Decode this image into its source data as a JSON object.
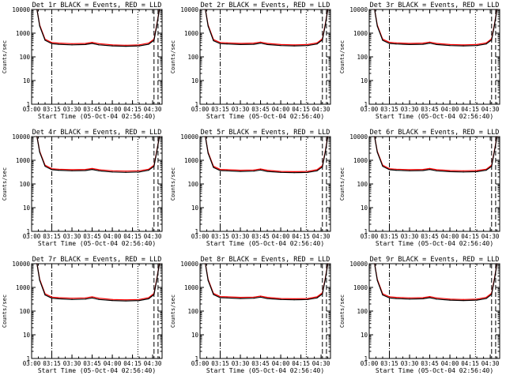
{
  "figure": {
    "start_time_label": "Start Time (05-Oct-04 02:56:40)",
    "ylabel": "Counts/sec",
    "colors": {
      "events": "#000000",
      "lld": "#ff0000",
      "background": "#ffffff"
    }
  },
  "chart_data": [
    {
      "type": "line",
      "title": "Det 1r BLACK = Events, RED = LLD",
      "xlabel": "Start Time (05-Oct-04 02:56:40)",
      "ylabel": "Counts/sec",
      "yscale": "log",
      "xlim": [
        "03:00",
        "04:37"
      ],
      "ylim": [
        1,
        10000
      ],
      "x_tick_labels": [
        "03:00",
        "03:15",
        "03:30",
        "03:45",
        "04:00",
        "04:15",
        "04:30"
      ],
      "y_tick_labels": [
        "1",
        "10",
        "100",
        "1000",
        "10000"
      ],
      "x": [
        "03:04",
        "03:06",
        "03:10",
        "03:15",
        "03:20",
        "03:30",
        "03:40",
        "03:45",
        "03:50",
        "04:00",
        "04:10",
        "04:20",
        "04:27",
        "04:31",
        "04:33",
        "04:35"
      ],
      "series": [
        {
          "name": "Events",
          "color": "#000000",
          "values": [
            10000,
            2000,
            500,
            360,
            340,
            320,
            330,
            370,
            320,
            290,
            280,
            290,
            340,
            500,
            2000,
            10000
          ]
        },
        {
          "name": "LLD",
          "color": "#ff0000",
          "values": [
            10000,
            2200,
            560,
            400,
            380,
            360,
            370,
            410,
            360,
            320,
            310,
            320,
            380,
            560,
            2200,
            10000
          ]
        }
      ],
      "markers": [
        {
          "time": "03:15",
          "style": "dash-dot"
        },
        {
          "time": "04:19",
          "style": "dotted"
        },
        {
          "time": "04:31",
          "style": "dashed"
        },
        {
          "time": "04:34",
          "style": "dashed"
        }
      ]
    },
    {
      "type": "line",
      "title": "Det 2r BLACK = Events, RED = LLD",
      "xlabel": "Start Time (05-Oct-04 02:56:40)",
      "ylabel": "Counts/sec",
      "yscale": "log",
      "xlim": [
        "03:00",
        "04:37"
      ],
      "ylim": [
        1,
        10000
      ],
      "x_tick_labels": [
        "03:00",
        "03:15",
        "03:30",
        "03:45",
        "04:00",
        "04:15",
        "04:30"
      ],
      "y_tick_labels": [
        "1",
        "10",
        "100",
        "1000",
        "10000"
      ],
      "x": [
        "03:04",
        "03:06",
        "03:10",
        "03:15",
        "03:20",
        "03:30",
        "03:40",
        "03:45",
        "03:50",
        "04:00",
        "04:10",
        "04:20",
        "04:27",
        "04:31",
        "04:33",
        "04:35"
      ],
      "series": [
        {
          "name": "Events",
          "color": "#000000",
          "values": [
            10000,
            2000,
            480,
            360,
            350,
            330,
            340,
            380,
            330,
            300,
            290,
            300,
            350,
            520,
            2000,
            10000
          ]
        },
        {
          "name": "LLD",
          "color": "#ff0000",
          "values": [
            10000,
            2200,
            540,
            400,
            390,
            370,
            380,
            420,
            370,
            330,
            320,
            330,
            390,
            580,
            2200,
            10000
          ]
        }
      ],
      "markers": [
        {
          "time": "03:15",
          "style": "dash-dot"
        },
        {
          "time": "04:19",
          "style": "dotted"
        },
        {
          "time": "04:31",
          "style": "dashed"
        },
        {
          "time": "04:34",
          "style": "dashed"
        }
      ]
    },
    {
      "type": "line",
      "title": "Det 3r BLACK = Events, RED = LLD",
      "xlabel": "Start Time (05-Oct-04 02:56:40)",
      "ylabel": "Counts/sec",
      "yscale": "log",
      "xlim": [
        "03:00",
        "04:37"
      ],
      "ylim": [
        1,
        10000
      ],
      "x_tick_labels": [
        "03:00",
        "03:15",
        "03:30",
        "03:45",
        "04:00",
        "04:15",
        "04:30"
      ],
      "y_tick_labels": [
        "1",
        "10",
        "100",
        "1000",
        "10000"
      ],
      "x": [
        "03:04",
        "03:06",
        "03:10",
        "03:15",
        "03:20",
        "03:30",
        "03:40",
        "03:45",
        "03:50",
        "04:00",
        "04:10",
        "04:20",
        "04:27",
        "04:31",
        "04:33",
        "04:35"
      ],
      "series": [
        {
          "name": "Events",
          "color": "#000000",
          "values": [
            10000,
            2000,
            500,
            370,
            350,
            330,
            340,
            380,
            330,
            300,
            290,
            300,
            350,
            520,
            2000,
            10000
          ]
        },
        {
          "name": "LLD",
          "color": "#ff0000",
          "values": [
            10000,
            2200,
            560,
            410,
            390,
            370,
            380,
            420,
            370,
            330,
            320,
            330,
            390,
            580,
            2200,
            10000
          ]
        }
      ],
      "markers": [
        {
          "time": "03:15",
          "style": "dash-dot"
        },
        {
          "time": "04:19",
          "style": "dotted"
        },
        {
          "time": "04:31",
          "style": "dashed"
        },
        {
          "time": "04:34",
          "style": "dashed"
        }
      ]
    },
    {
      "type": "line",
      "title": "Det 4r BLACK = Events, RED = LLD",
      "xlabel": "Start Time (05-Oct-04 02:56:40)",
      "ylabel": "Counts/sec",
      "yscale": "log",
      "xlim": [
        "03:00",
        "04:37"
      ],
      "ylim": [
        1,
        10000
      ],
      "x_tick_labels": [
        "03:00",
        "03:15",
        "03:30",
        "03:45",
        "04:00",
        "04:15",
        "04:30"
      ],
      "y_tick_labels": [
        "1",
        "10",
        "100",
        "1000",
        "10000"
      ],
      "x": [
        "03:04",
        "03:06",
        "03:10",
        "03:15",
        "03:20",
        "03:30",
        "03:40",
        "03:45",
        "03:50",
        "04:00",
        "04:10",
        "04:20",
        "04:27",
        "04:31",
        "04:33",
        "04:35"
      ],
      "series": [
        {
          "name": "Events",
          "color": "#000000",
          "values": [
            10000,
            2200,
            560,
            400,
            380,
            360,
            370,
            410,
            360,
            320,
            310,
            320,
            380,
            560,
            2200,
            10000
          ]
        },
        {
          "name": "LLD",
          "color": "#ff0000",
          "values": [
            10000,
            2400,
            620,
            440,
            420,
            400,
            410,
            450,
            400,
            360,
            350,
            360,
            420,
            620,
            2400,
            10000
          ]
        }
      ],
      "markers": [
        {
          "time": "03:15",
          "style": "dash-dot"
        },
        {
          "time": "04:19",
          "style": "dotted"
        },
        {
          "time": "04:31",
          "style": "dashed"
        },
        {
          "time": "04:34",
          "style": "dashed"
        }
      ]
    },
    {
      "type": "line",
      "title": "Det 5r BLACK = Events, RED = LLD",
      "xlabel": "Start Time (05-Oct-04 02:56:40)",
      "ylabel": "Counts/sec",
      "yscale": "log",
      "xlim": [
        "03:00",
        "04:37"
      ],
      "ylim": [
        1,
        10000
      ],
      "x_tick_labels": [
        "03:00",
        "03:15",
        "03:30",
        "03:45",
        "04:00",
        "04:15",
        "04:30"
      ],
      "y_tick_labels": [
        "1",
        "10",
        "100",
        "1000",
        "10000"
      ],
      "x": [
        "03:04",
        "03:06",
        "03:10",
        "03:15",
        "03:20",
        "03:30",
        "03:40",
        "03:45",
        "03:50",
        "04:00",
        "04:10",
        "04:20",
        "04:27",
        "04:31",
        "04:33",
        "04:35"
      ],
      "series": [
        {
          "name": "Events",
          "color": "#000000",
          "values": [
            10000,
            2000,
            500,
            370,
            360,
            340,
            350,
            390,
            340,
            310,
            300,
            310,
            360,
            530,
            2000,
            10000
          ]
        },
        {
          "name": "LLD",
          "color": "#ff0000",
          "values": [
            10000,
            2200,
            560,
            410,
            400,
            380,
            390,
            430,
            380,
            340,
            330,
            340,
            400,
            590,
            2200,
            10000
          ]
        }
      ],
      "markers": [
        {
          "time": "03:15",
          "style": "dash-dot"
        },
        {
          "time": "04:19",
          "style": "dotted"
        },
        {
          "time": "04:31",
          "style": "dashed"
        },
        {
          "time": "04:34",
          "style": "dashed"
        }
      ]
    },
    {
      "type": "line",
      "title": "Det 6r BLACK = Events, RED = LLD",
      "xlabel": "Start Time (05-Oct-04 02:56:40)",
      "ylabel": "Counts/sec",
      "yscale": "log",
      "xlim": [
        "03:00",
        "04:37"
      ],
      "ylim": [
        1,
        10000
      ],
      "x_tick_labels": [
        "03:00",
        "03:15",
        "03:30",
        "03:45",
        "04:00",
        "04:15",
        "04:30"
      ],
      "y_tick_labels": [
        "1",
        "10",
        "100",
        "1000",
        "10000"
      ],
      "x": [
        "03:04",
        "03:06",
        "03:10",
        "03:15",
        "03:20",
        "03:30",
        "03:40",
        "03:45",
        "03:50",
        "04:00",
        "04:10",
        "04:20",
        "04:27",
        "04:31",
        "04:33",
        "04:35"
      ],
      "series": [
        {
          "name": "Events",
          "color": "#000000",
          "values": [
            10000,
            2200,
            560,
            400,
            380,
            360,
            370,
            410,
            360,
            330,
            320,
            330,
            380,
            560,
            2200,
            10000
          ]
        },
        {
          "name": "LLD",
          "color": "#ff0000",
          "values": [
            10000,
            2400,
            620,
            440,
            420,
            400,
            410,
            450,
            400,
            370,
            360,
            370,
            420,
            620,
            2400,
            10000
          ]
        }
      ],
      "markers": [
        {
          "time": "03:15",
          "style": "dash-dot"
        },
        {
          "time": "04:19",
          "style": "dotted"
        },
        {
          "time": "04:31",
          "style": "dashed"
        },
        {
          "time": "04:34",
          "style": "dashed"
        }
      ]
    },
    {
      "type": "line",
      "title": "Det 7r BLACK = Events, RED = LLD",
      "xlabel": "Start Time (05-Oct-04 02:56:40)",
      "ylabel": "Counts/sec",
      "yscale": "log",
      "xlim": [
        "03:00",
        "04:37"
      ],
      "ylim": [
        1,
        10000
      ],
      "x_tick_labels": [
        "03:00",
        "03:15",
        "03:30",
        "03:45",
        "04:00",
        "04:15",
        "04:30"
      ],
      "y_tick_labels": [
        "1",
        "10",
        "100",
        "1000",
        "10000"
      ],
      "x": [
        "03:04",
        "03:06",
        "03:10",
        "03:15",
        "03:20",
        "03:30",
        "03:40",
        "03:45",
        "03:50",
        "04:00",
        "04:10",
        "04:20",
        "04:27",
        "04:31",
        "04:33",
        "04:35"
      ],
      "series": [
        {
          "name": "Events",
          "color": "#000000",
          "values": [
            10000,
            2000,
            480,
            350,
            330,
            310,
            320,
            360,
            310,
            280,
            270,
            280,
            330,
            500,
            2000,
            10000
          ]
        },
        {
          "name": "LLD",
          "color": "#ff0000",
          "values": [
            10000,
            2200,
            540,
            390,
            370,
            350,
            360,
            400,
            350,
            310,
            300,
            310,
            370,
            560,
            2200,
            10000
          ]
        }
      ],
      "markers": [
        {
          "time": "03:15",
          "style": "dash-dot"
        },
        {
          "time": "04:19",
          "style": "dotted"
        },
        {
          "time": "04:31",
          "style": "dashed"
        },
        {
          "time": "04:34",
          "style": "dashed"
        }
      ]
    },
    {
      "type": "line",
      "title": "Det 8r BLACK = Events, RED = LLD",
      "xlabel": "Start Time (05-Oct-04 02:56:40)",
      "ylabel": "Counts/sec",
      "yscale": "log",
      "xlim": [
        "03:00",
        "04:37"
      ],
      "ylim": [
        1,
        10000
      ],
      "x_tick_labels": [
        "03:00",
        "03:15",
        "03:30",
        "03:45",
        "04:00",
        "04:15",
        "04:30"
      ],
      "y_tick_labels": [
        "1",
        "10",
        "100",
        "1000",
        "10000"
      ],
      "x": [
        "03:04",
        "03:06",
        "03:10",
        "03:15",
        "03:20",
        "03:30",
        "03:40",
        "03:45",
        "03:50",
        "04:00",
        "04:10",
        "04:20",
        "04:27",
        "04:31",
        "04:33",
        "04:35"
      ],
      "series": [
        {
          "name": "Events",
          "color": "#000000",
          "values": [
            10000,
            2000,
            500,
            370,
            360,
            340,
            350,
            390,
            340,
            310,
            300,
            310,
            360,
            530,
            2000,
            10000
          ]
        },
        {
          "name": "LLD",
          "color": "#ff0000",
          "values": [
            10000,
            2200,
            560,
            410,
            400,
            380,
            390,
            430,
            380,
            340,
            330,
            340,
            400,
            590,
            2200,
            10000
          ]
        }
      ],
      "markers": [
        {
          "time": "03:15",
          "style": "dash-dot"
        },
        {
          "time": "04:19",
          "style": "dotted"
        },
        {
          "time": "04:31",
          "style": "dashed"
        },
        {
          "time": "04:34",
          "style": "dashed"
        }
      ]
    },
    {
      "type": "line",
      "title": "Det 9r BLACK = Events, RED = LLD",
      "xlabel": "Start Time (05-Oct-04 02:56:40)",
      "ylabel": "Counts/sec",
      "yscale": "log",
      "xlim": [
        "03:00",
        "04:37"
      ],
      "ylim": [
        1,
        10000
      ],
      "x_tick_labels": [
        "03:00",
        "03:15",
        "03:30",
        "03:45",
        "04:00",
        "04:15",
        "04:30"
      ],
      "y_tick_labels": [
        "1",
        "10",
        "100",
        "1000",
        "10000"
      ],
      "x": [
        "03:04",
        "03:06",
        "03:10",
        "03:15",
        "03:20",
        "03:30",
        "03:40",
        "03:45",
        "03:50",
        "04:00",
        "04:10",
        "04:20",
        "04:27",
        "04:31",
        "04:33",
        "04:35"
      ],
      "series": [
        {
          "name": "Events",
          "color": "#000000",
          "values": [
            10000,
            2000,
            480,
            360,
            340,
            320,
            330,
            370,
            320,
            290,
            280,
            290,
            340,
            510,
            2000,
            10000
          ]
        },
        {
          "name": "LLD",
          "color": "#ff0000",
          "values": [
            10000,
            2200,
            540,
            400,
            380,
            360,
            370,
            410,
            360,
            320,
            310,
            320,
            380,
            570,
            2200,
            10000
          ]
        }
      ],
      "markers": [
        {
          "time": "03:15",
          "style": "dash-dot"
        },
        {
          "time": "04:19",
          "style": "dotted"
        },
        {
          "time": "04:31",
          "style": "dashed"
        },
        {
          "time": "04:34",
          "style": "dashed"
        }
      ]
    }
  ]
}
